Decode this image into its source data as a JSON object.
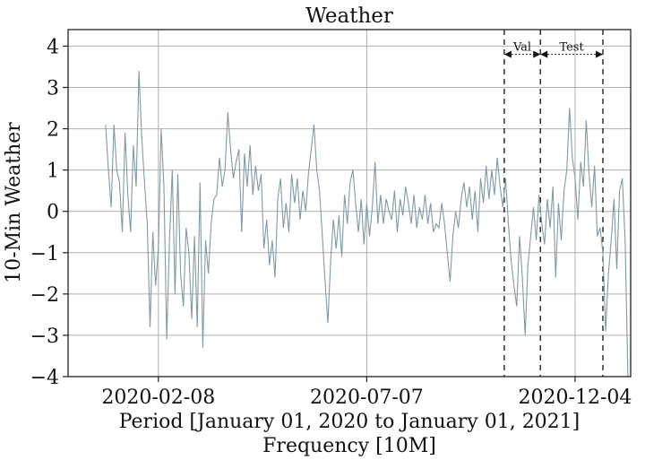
{
  "chart_data": {
    "type": "line",
    "title": "Weather",
    "xlabel": "Period [January 01, 2020 to January 01, 2021]",
    "xlabel2": "Frequency [10M]",
    "ylabel": "10-Min Weather",
    "x_ticks": [
      "2020-02-08",
      "2020-07-07",
      "2020-12-04"
    ],
    "y_ticks": [
      "−4",
      "−3",
      "−2",
      "−1",
      "0",
      "1",
      "2",
      "3",
      "4"
    ],
    "ylim": [
      -4,
      4.4
    ],
    "xlim": [
      "2019-12-05",
      "2021-01-13"
    ],
    "grid": true,
    "line_color": "#7f9aa6",
    "split_lines": [
      {
        "date": "2020-10-14"
      },
      {
        "date": "2020-11-09"
      },
      {
        "date": "2020-12-24"
      }
    ],
    "annotations": [
      {
        "label": "Val",
        "from": "2020-10-14",
        "to": "2020-11-09",
        "y": 3.8
      },
      {
        "label": "Test",
        "from": "2020-11-09",
        "to": "2020-12-24",
        "y": 3.8
      }
    ],
    "series": [
      {
        "points": [
          [
            "2020-01-01",
            2.1
          ],
          [
            "2020-01-03",
            1.0
          ],
          [
            "2020-01-05",
            0.1
          ],
          [
            "2020-01-07",
            2.1
          ],
          [
            "2020-01-09",
            1.0
          ],
          [
            "2020-01-11",
            0.7
          ],
          [
            "2020-01-13",
            -0.5
          ],
          [
            "2020-01-15",
            1.9
          ],
          [
            "2020-01-17",
            0.4
          ],
          [
            "2020-01-19",
            -0.5
          ],
          [
            "2020-01-21",
            1.6
          ],
          [
            "2020-01-23",
            0.6
          ],
          [
            "2020-01-25",
            3.4
          ],
          [
            "2020-01-27",
            1.8
          ],
          [
            "2020-01-29",
            0.7
          ],
          [
            "2020-01-31",
            -0.3
          ],
          [
            "2020-02-02",
            -2.8
          ],
          [
            "2020-02-04",
            -0.5
          ],
          [
            "2020-02-06",
            -1.8
          ],
          [
            "2020-02-08",
            -0.9
          ],
          [
            "2020-02-10",
            2.0
          ],
          [
            "2020-02-12",
            0.6
          ],
          [
            "2020-02-14",
            -3.1
          ],
          [
            "2020-02-16",
            -0.7
          ],
          [
            "2020-02-18",
            1.0
          ],
          [
            "2020-02-20",
            -2.0
          ],
          [
            "2020-02-22",
            0.9
          ],
          [
            "2020-02-24",
            -1.5
          ],
          [
            "2020-02-26",
            -2.3
          ],
          [
            "2020-02-28",
            -0.4
          ],
          [
            "2020-03-01",
            -1.0
          ],
          [
            "2020-03-03",
            -2.6
          ],
          [
            "2020-03-05",
            -0.6
          ],
          [
            "2020-03-07",
            -2.8
          ],
          [
            "2020-03-09",
            0.7
          ],
          [
            "2020-03-11",
            -3.3
          ],
          [
            "2020-03-13",
            -0.7
          ],
          [
            "2020-03-15",
            -1.5
          ],
          [
            "2020-03-17",
            -0.3
          ],
          [
            "2020-03-19",
            0.3
          ],
          [
            "2020-03-21",
            0.4
          ],
          [
            "2020-03-23",
            1.3
          ],
          [
            "2020-03-25",
            0.6
          ],
          [
            "2020-03-27",
            1.0
          ],
          [
            "2020-03-29",
            2.4
          ],
          [
            "2020-03-31",
            1.5
          ],
          [
            "2020-04-02",
            0.8
          ],
          [
            "2020-04-04",
            1.2
          ],
          [
            "2020-04-06",
            1.5
          ],
          [
            "2020-04-08",
            -0.5
          ],
          [
            "2020-04-10",
            1.4
          ],
          [
            "2020-04-12",
            0.6
          ],
          [
            "2020-04-14",
            1.6
          ],
          [
            "2020-04-16",
            0.4
          ],
          [
            "2020-04-18",
            1.1
          ],
          [
            "2020-04-20",
            0.5
          ],
          [
            "2020-04-22",
            0.9
          ],
          [
            "2020-04-24",
            -0.9
          ],
          [
            "2020-04-26",
            -0.2
          ],
          [
            "2020-04-28",
            -1.3
          ],
          [
            "2020-04-30",
            -0.7
          ],
          [
            "2020-05-02",
            -1.6
          ],
          [
            "2020-05-04",
            0.3
          ],
          [
            "2020-05-06",
            0.8
          ],
          [
            "2020-05-08",
            -0.4
          ],
          [
            "2020-05-10",
            0.2
          ],
          [
            "2020-05-12",
            -0.5
          ],
          [
            "2020-05-14",
            0.9
          ],
          [
            "2020-05-16",
            0.2
          ],
          [
            "2020-05-18",
            0.8
          ],
          [
            "2020-05-20",
            -0.2
          ],
          [
            "2020-05-22",
            0.5
          ],
          [
            "2020-05-24",
            0.0
          ],
          [
            "2020-05-26",
            0.9
          ],
          [
            "2020-05-28",
            1.5
          ],
          [
            "2020-05-30",
            2.1
          ],
          [
            "2020-06-01",
            1.0
          ],
          [
            "2020-06-03",
            0.5
          ],
          [
            "2020-06-05",
            -0.6
          ],
          [
            "2020-06-07",
            -1.7
          ],
          [
            "2020-06-09",
            -2.7
          ],
          [
            "2020-06-11",
            -1.2
          ],
          [
            "2020-06-13",
            -0.2
          ],
          [
            "2020-06-15",
            -0.9
          ],
          [
            "2020-06-17",
            -0.1
          ],
          [
            "2020-06-19",
            -1.1
          ],
          [
            "2020-06-21",
            0.4
          ],
          [
            "2020-06-23",
            -0.3
          ],
          [
            "2020-06-25",
            0.7
          ],
          [
            "2020-06-27",
            1.0
          ],
          [
            "2020-06-29",
            0.2
          ],
          [
            "2020-07-01",
            -0.5
          ],
          [
            "2020-07-03",
            0.3
          ],
          [
            "2020-07-05",
            -0.8
          ],
          [
            "2020-07-07",
            0.2
          ],
          [
            "2020-07-09",
            -0.6
          ],
          [
            "2020-07-11",
            0.1
          ],
          [
            "2020-07-13",
            1.2
          ],
          [
            "2020-07-15",
            -0.3
          ],
          [
            "2020-07-17",
            0.4
          ],
          [
            "2020-07-19",
            -0.3
          ],
          [
            "2020-07-21",
            0.3
          ],
          [
            "2020-07-23",
            0.0
          ],
          [
            "2020-07-25",
            -0.2
          ],
          [
            "2020-07-27",
            0.5
          ],
          [
            "2020-07-29",
            -0.5
          ],
          [
            "2020-07-31",
            0.3
          ],
          [
            "2020-08-02",
            -0.1
          ],
          [
            "2020-08-04",
            0.6
          ],
          [
            "2020-08-06",
            0.2
          ],
          [
            "2020-08-08",
            -0.3
          ],
          [
            "2020-08-10",
            0.4
          ],
          [
            "2020-08-12",
            -0.4
          ],
          [
            "2020-08-14",
            0.1
          ],
          [
            "2020-08-16",
            -0.2
          ],
          [
            "2020-08-18",
            0.4
          ],
          [
            "2020-08-20",
            -0.3
          ],
          [
            "2020-08-22",
            0.2
          ],
          [
            "2020-08-24",
            -0.5
          ],
          [
            "2020-08-26",
            -0.3
          ],
          [
            "2020-08-28",
            -0.4
          ],
          [
            "2020-08-30",
            0.2
          ],
          [
            "2020-09-01",
            -0.3
          ],
          [
            "2020-09-03",
            -1.0
          ],
          [
            "2020-09-05",
            -1.7
          ],
          [
            "2020-09-07",
            -0.6
          ],
          [
            "2020-09-09",
            0.0
          ],
          [
            "2020-09-11",
            -0.4
          ],
          [
            "2020-09-13",
            0.3
          ],
          [
            "2020-09-15",
            0.7
          ],
          [
            "2020-09-17",
            0.1
          ],
          [
            "2020-09-19",
            0.6
          ],
          [
            "2020-09-21",
            -0.2
          ],
          [
            "2020-09-23",
            0.5
          ],
          [
            "2020-09-25",
            -0.5
          ],
          [
            "2020-09-27",
            0.8
          ],
          [
            "2020-09-29",
            0.2
          ],
          [
            "2020-10-01",
            1.1
          ],
          [
            "2020-10-03",
            0.3
          ],
          [
            "2020-10-05",
            1.0
          ],
          [
            "2020-10-07",
            0.4
          ],
          [
            "2020-10-09",
            1.3
          ],
          [
            "2020-10-11",
            0.6
          ],
          [
            "2020-10-13",
            0.1
          ],
          [
            "2020-10-15",
            0.8
          ],
          [
            "2020-10-17",
            -0.3
          ],
          [
            "2020-10-19",
            -1.2
          ],
          [
            "2020-10-21",
            -1.8
          ],
          [
            "2020-10-23",
            -2.3
          ],
          [
            "2020-10-25",
            -0.6
          ],
          [
            "2020-10-27",
            -1.6
          ],
          [
            "2020-10-29",
            -3.0
          ],
          [
            "2020-10-31",
            -1.3
          ],
          [
            "2020-11-02",
            -0.6
          ],
          [
            "2020-11-04",
            0.1
          ],
          [
            "2020-11-06",
            -0.7
          ],
          [
            "2020-11-08",
            0.4
          ],
          [
            "2020-11-10",
            -0.3
          ],
          [
            "2020-11-12",
            -0.8
          ],
          [
            "2020-11-14",
            0.3
          ],
          [
            "2020-11-16",
            -0.4
          ],
          [
            "2020-11-18",
            0.6
          ],
          [
            "2020-11-20",
            -1.6
          ],
          [
            "2020-11-22",
            0.2
          ],
          [
            "2020-11-24",
            -0.7
          ],
          [
            "2020-11-26",
            0.5
          ],
          [
            "2020-11-28",
            1.0
          ],
          [
            "2020-11-30",
            2.5
          ],
          [
            "2020-12-02",
            1.3
          ],
          [
            "2020-12-04",
            0.8
          ],
          [
            "2020-12-06",
            -0.2
          ],
          [
            "2020-12-08",
            1.2
          ],
          [
            "2020-12-10",
            0.6
          ],
          [
            "2020-12-12",
            2.2
          ],
          [
            "2020-12-14",
            0.9
          ],
          [
            "2020-12-16",
            0.1
          ],
          [
            "2020-12-18",
            1.1
          ],
          [
            "2020-12-20",
            -0.6
          ],
          [
            "2020-12-22",
            -0.4
          ],
          [
            "2020-12-24",
            -1.0
          ],
          [
            "2020-12-26",
            -2.9
          ],
          [
            "2020-12-28",
            -1.5
          ],
          [
            "2020-12-30",
            -0.7
          ],
          [
            "2021-01-01",
            0.3
          ],
          [
            "2021-01-03",
            -1.4
          ],
          [
            "2021-01-05",
            0.5
          ],
          [
            "2021-01-07",
            0.8
          ],
          [
            "2021-01-09",
            -0.7
          ],
          [
            "2021-01-11",
            -4.0
          ]
        ]
      }
    ]
  }
}
